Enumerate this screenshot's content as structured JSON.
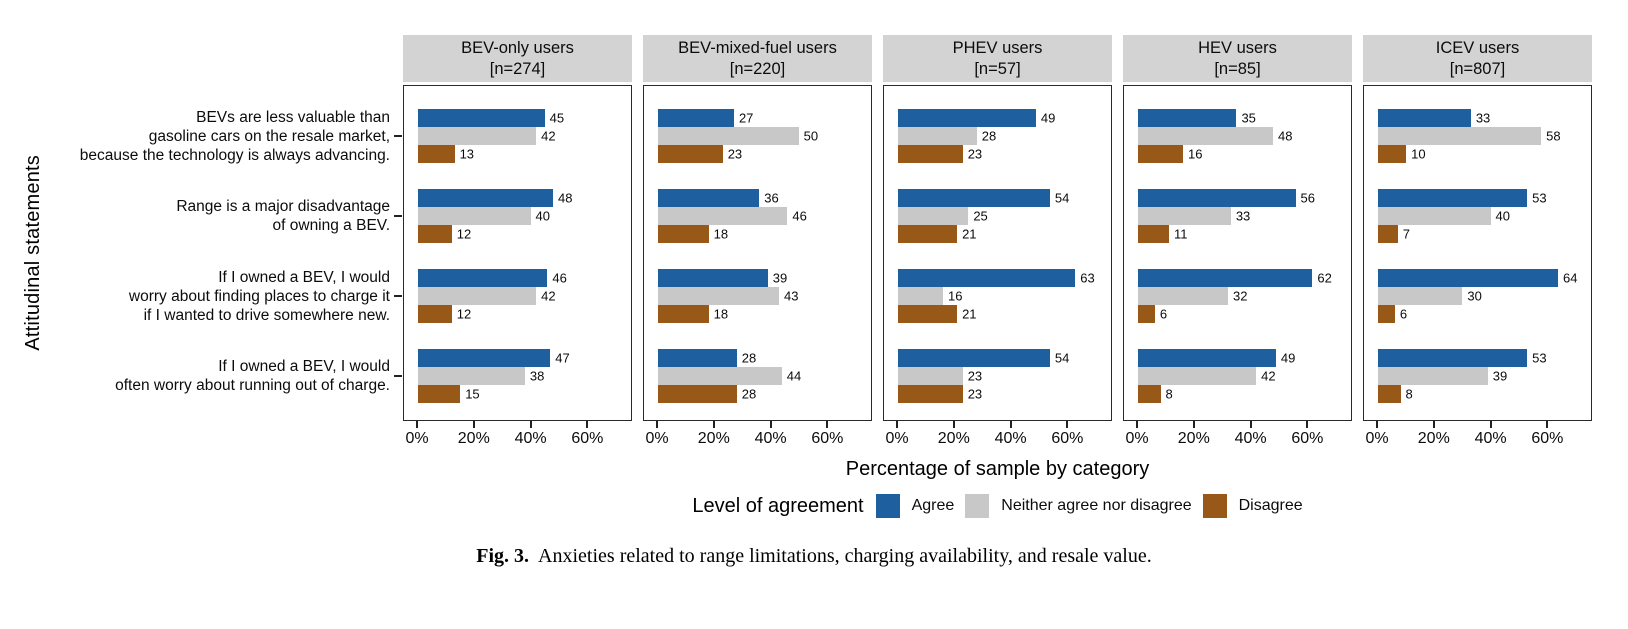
{
  "figure": {
    "y_axis_title": "Attitudinal statements",
    "x_axis_title": "Percentage of sample by category",
    "legend_title": "Level of agreement",
    "caption_label": "Fig. 3.",
    "caption_text": "Anxieties related to range limitations, charging availability, and resale value."
  },
  "colors": {
    "agree": "#1e609f",
    "neither": "#c8c8c8",
    "disagree": "#985818",
    "strip_bg": "#d3d3d3",
    "panel_border": "#2a2a2a"
  },
  "chart_data": {
    "type": "bar",
    "orientation": "horizontal",
    "title": "",
    "xlabel": "Percentage of sample by category",
    "ylabel": "Attitudinal statements",
    "x_axis": {
      "range": [
        0,
        75
      ],
      "ticks": [
        0,
        20,
        40,
        60
      ],
      "tick_labels": [
        "0%",
        "20%",
        "40%",
        "60%"
      ],
      "unit": "%"
    },
    "grid": false,
    "legend_position": "bottom",
    "legend": [
      "Agree",
      "Neither agree nor disagree",
      "Disagree"
    ],
    "categories": [
      "BEVs are less valuable than gasoline cars on the resale market, because the technology is always advancing.",
      "Range is a major disadvantage of owning a BEV.",
      "If I owned a BEV, I would worry about finding places to charge it if I wanted to drive somewhere new.",
      "If I owned a BEV, I would often worry about running out of charge."
    ],
    "category_lines": [
      [
        "BEVs are less valuable than",
        "gasoline cars on the resale market,",
        "because the technology is always advancing."
      ],
      [
        "Range is a major disadvantage",
        "of owning a BEV."
      ],
      [
        "If I owned a BEV, I would",
        "worry about finding places to charge it",
        "if I wanted to drive somewhere new."
      ],
      [
        "If I owned a BEV, I would",
        "often worry about running out of charge."
      ]
    ],
    "values_note": "facets[].values: one row per category above; columns ordered [Agree, Neither agree nor disagree, Disagree]",
    "facets": [
      {
        "title": "BEV-only users",
        "n": "[n=274]",
        "values": [
          [
            45,
            42,
            13
          ],
          [
            48,
            40,
            12
          ],
          [
            46,
            42,
            12
          ],
          [
            47,
            38,
            15
          ]
        ]
      },
      {
        "title": "BEV-mixed-fuel users",
        "n": "[n=220]",
        "values": [
          [
            27,
            50,
            23
          ],
          [
            36,
            46,
            18
          ],
          [
            39,
            43,
            18
          ],
          [
            28,
            44,
            28
          ]
        ]
      },
      {
        "title": "PHEV users",
        "n": "[n=57]",
        "values": [
          [
            49,
            28,
            23
          ],
          [
            54,
            25,
            21
          ],
          [
            63,
            16,
            21
          ],
          [
            54,
            23,
            23
          ]
        ]
      },
      {
        "title": "HEV users",
        "n": "[n=85]",
        "values": [
          [
            35,
            48,
            16
          ],
          [
            56,
            33,
            11
          ],
          [
            62,
            32,
            6
          ],
          [
            49,
            42,
            8
          ]
        ]
      },
      {
        "title": "ICEV users",
        "n": "[n=807]",
        "values": [
          [
            33,
            58,
            10
          ],
          [
            53,
            40,
            7
          ],
          [
            64,
            30,
            6
          ],
          [
            53,
            39,
            8
          ]
        ]
      }
    ]
  }
}
